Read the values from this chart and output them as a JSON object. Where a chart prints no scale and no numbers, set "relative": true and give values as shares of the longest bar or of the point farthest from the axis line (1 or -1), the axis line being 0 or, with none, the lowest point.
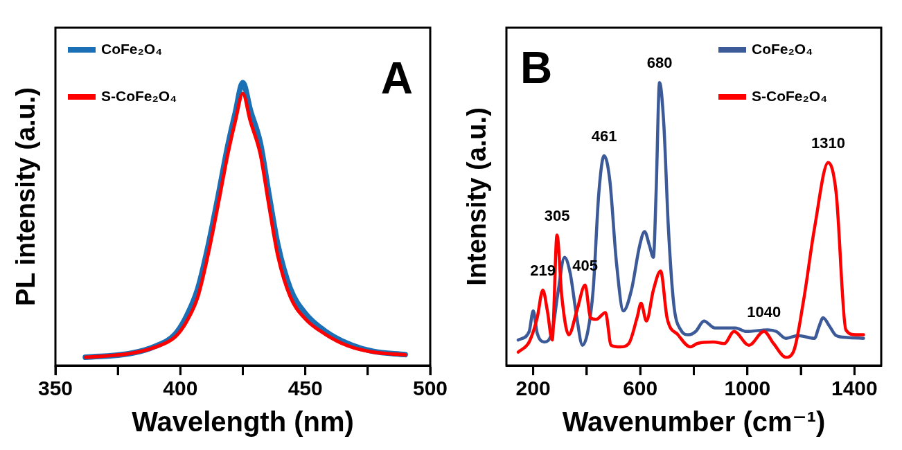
{
  "chart_data": [
    {
      "type": "line",
      "xlabel": "Wavelength (nm)",
      "ylabel": "PL intensity (a.u.)",
      "relative": true,
      "legend": "top left",
      "xlim": [
        350,
        500
      ],
      "xticks": [
        350,
        {
          "value": 375,
          "label": null
        },
        400,
        {
          "value": 425,
          "label": null
        },
        450,
        {
          "value": 475,
          "label": null
        },
        500
      ],
      "annotations": [
        "A"
      ],
      "series": [
        {
          "name": "CoFe₂O₄",
          "color": "#1a6fb5",
          "x": [
            362,
            380,
            390,
            398,
            402.5,
            407,
            411,
            415,
            419,
            422,
            425,
            428,
            432,
            435.5,
            439,
            444,
            450,
            458,
            467,
            477,
            490
          ],
          "values": [
            0,
            0.014,
            0.04,
            0.085,
            0.15,
            0.25,
            0.4,
            0.58,
            0.77,
            0.89,
            1,
            0.9,
            0.78,
            0.59,
            0.41,
            0.25,
            0.16,
            0.095,
            0.05,
            0.022,
            0.01
          ]
        },
        {
          "name": "S-CoFe₂O₄",
          "color": "#ff0000",
          "x": [
            362,
            380,
            390,
            398,
            402.5,
            407,
            411,
            415,
            419,
            422,
            425,
            428,
            432,
            435.5,
            439,
            444,
            450,
            458,
            467,
            477,
            490
          ],
          "values": [
            0,
            0.014,
            0.037,
            0.075,
            0.13,
            0.22,
            0.37,
            0.55,
            0.74,
            0.86,
            0.96,
            0.86,
            0.74,
            0.55,
            0.37,
            0.22,
            0.14,
            0.084,
            0.042,
            0.019,
            0.009
          ]
        }
      ]
    },
    {
      "type": "line",
      "xlabel": "Wavenumber (cm⁻¹)",
      "ylabel": "Intensity (a.u.)",
      "relative": true,
      "legend": "top right",
      "xlim": [
        100,
        1500
      ],
      "xticks": [
        200,
        {
          "value": 400,
          "label": null
        },
        600,
        {
          "value": 800,
          "label": null
        },
        1000,
        {
          "value": 1200,
          "label": null
        },
        1400
      ],
      "annotations": [
        "B",
        {
          "text": "219",
          "x": 236,
          "y": 0.245
        },
        {
          "text": "305",
          "x": 289,
          "y": 0.445
        },
        {
          "text": "405",
          "x": 394,
          "y": 0.263
        },
        {
          "text": "461",
          "x": 465,
          "y": 0.734
        },
        {
          "text": "680",
          "x": 672,
          "y": 1
        },
        {
          "text": "1040",
          "x": 1062,
          "y": 0.094
        },
        {
          "text": "1310",
          "x": 1302,
          "y": 0.709
        }
      ],
      "series": [
        {
          "name": "CoFe₂O₄",
          "color": "#3d5a98",
          "x": [
            144,
            185,
            200,
            215,
            241,
            271,
            292,
            317,
            338,
            363,
            384,
            404,
            424,
            445,
            465,
            486,
            511,
            537,
            567,
            598,
            616,
            634,
            649,
            659,
            672,
            688,
            705,
            725,
            751,
            781,
            807,
            838,
            878,
            955,
            996,
            1077,
            1108,
            1144,
            1189,
            1251,
            1266,
            1283,
            1307,
            1332,
            1373,
            1434
          ],
          "values": [
            0.063,
            0.094,
            0.169,
            0.088,
            0.056,
            0.094,
            0.232,
            0.364,
            0.307,
            0.144,
            0.044,
            0.094,
            0.245,
            0.596,
            0.734,
            0.646,
            0.345,
            0.169,
            0.245,
            0.408,
            0.458,
            0.408,
            0.364,
            0.596,
            1,
            0.847,
            0.471,
            0.194,
            0.1,
            0.082,
            0.094,
            0.132,
            0.107,
            0.107,
            0.094,
            0.1,
            0.094,
            0.069,
            0.079,
            0.069,
            0.107,
            0.144,
            0.113,
            0.079,
            0.072,
            0.069
          ]
        },
        {
          "name": "S-CoFe₂O₄",
          "color": "#ff0000",
          "x": [
            144,
            185,
            215,
            236,
            253,
            271,
            289,
            307,
            333,
            363,
            394,
            414,
            435,
            470,
            491,
            526,
            557,
            588,
            603,
            623,
            649,
            676,
            700,
            741,
            787,
            812,
            873,
            914,
            950,
            1006,
            1062,
            1098,
            1144,
            1174,
            1210,
            1251,
            1302,
            1332,
            1368,
            1404,
            1434
          ],
          "values": [
            0.019,
            0.056,
            0.144,
            0.245,
            0.169,
            0.063,
            0.445,
            0.22,
            0.082,
            0.169,
            0.263,
            0.144,
            0.138,
            0.163,
            0.044,
            0.038,
            0.05,
            0.144,
            0.197,
            0.132,
            0.245,
            0.314,
            0.144,
            0.082,
            0.038,
            0.05,
            0.056,
            0.05,
            0.094,
            0.044,
            0.094,
            0.05,
            0,
            0.025,
            0.207,
            0.471,
            0.709,
            0.596,
            0.1,
            0.082,
            0.082
          ]
        }
      ]
    }
  ]
}
